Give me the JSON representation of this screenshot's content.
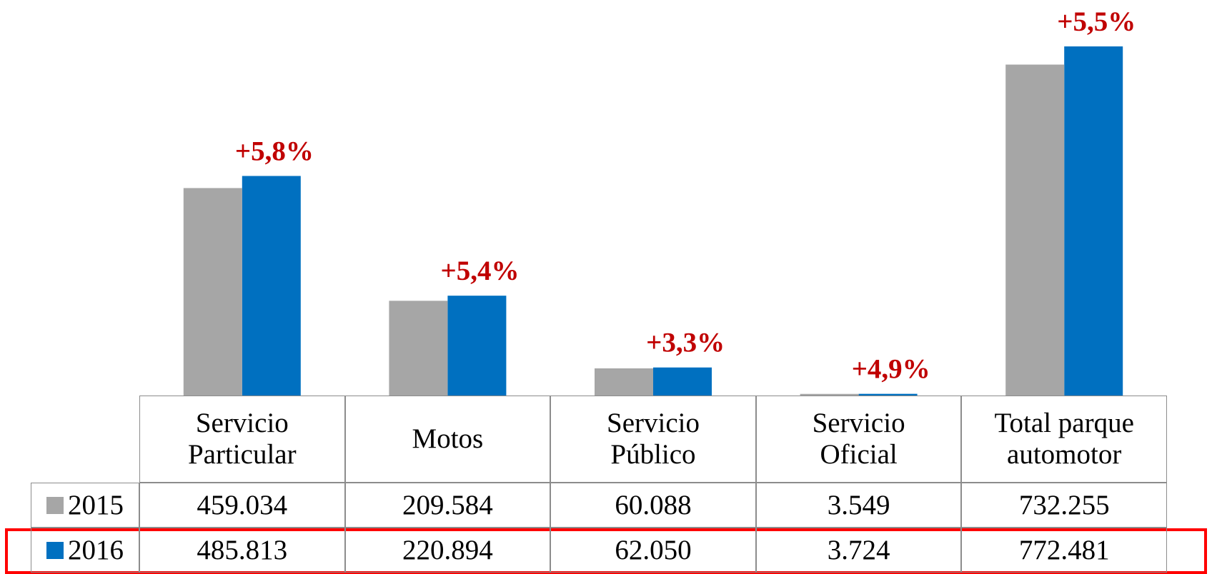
{
  "chart_data": {
    "type": "bar",
    "categories": [
      "Servicio Particular",
      "Motos",
      "Servicio Público",
      "Servicio Oficial",
      "Total parque automotor"
    ],
    "series": [
      {
        "name": "2015",
        "color": "#a6a6a6",
        "values": [
          459034,
          209584,
          60088,
          3549,
          732255
        ],
        "value_labels": [
          "459.034",
          "209.584",
          "60.088",
          "3.549",
          "732.255"
        ]
      },
      {
        "name": "2016",
        "color": "#0070c0",
        "values": [
          485813,
          220894,
          62050,
          3724,
          772481
        ],
        "value_labels": [
          "485.813",
          "220.894",
          "62.050",
          "3.724",
          "772.481"
        ]
      }
    ],
    "annotations": [
      "+5,8%",
      "+5,4%",
      "+3,3%",
      "+4,9%",
      "+5,5%"
    ]
  }
}
